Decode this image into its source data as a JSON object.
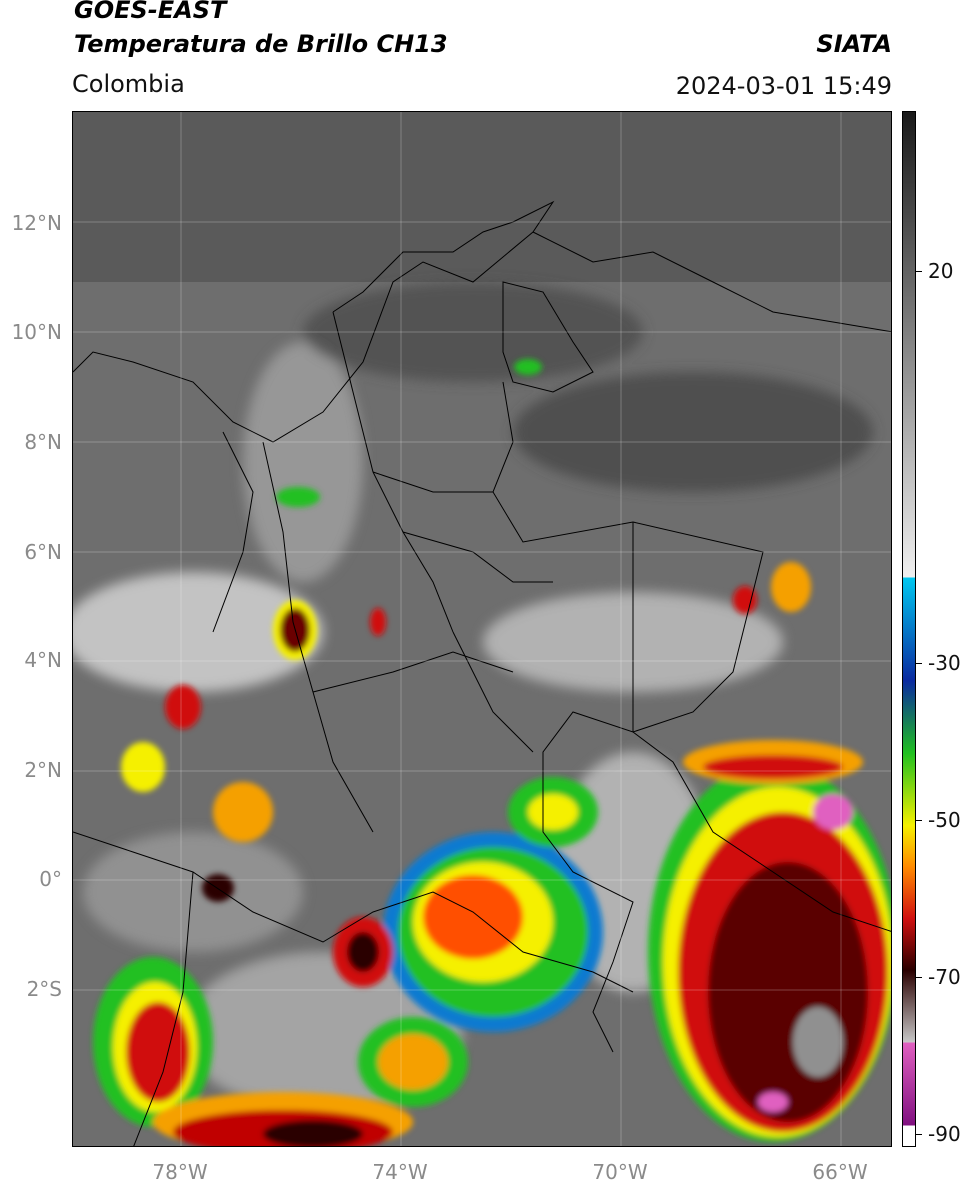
{
  "header": {
    "satellite": "GOES-EAST",
    "product": "Temperatura de Brillo CH13",
    "region": "Colombia",
    "organization": "SIATA",
    "datetime": "2024-03-01 15:49"
  },
  "map": {
    "lat_ticks": [
      "12°N",
      "10°N",
      "8°N",
      "6°N",
      "4°N",
      "2°N",
      "0°",
      "2°S"
    ],
    "lon_ticks": [
      "78°W",
      "74°W",
      "70°W",
      "66°W"
    ]
  },
  "colorbar": {
    "tick_labels": [
      "20",
      "-30",
      "-50",
      "-70",
      "-90"
    ],
    "colors": {
      "gray_warm": "#1a1a1a",
      "gray_cold": "#f0f0f0",
      "cyan": "#00c8f0",
      "blue": "#0a2aa0",
      "green": "#20c020",
      "yellow": "#f5f000",
      "orange": "#ff8a00",
      "red": "#d01010",
      "dark_red": "#2a0000",
      "pink": "#e060c0",
      "purple": "#801080"
    }
  }
}
